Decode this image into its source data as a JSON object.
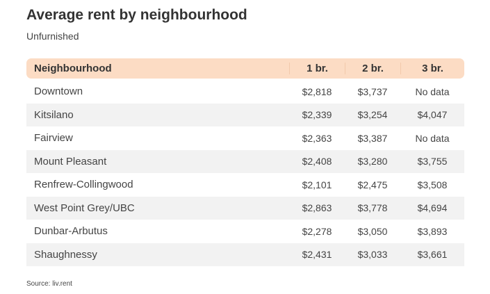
{
  "title": "Average rent by neighbourhood",
  "subtitle": "Unfurnished",
  "source": "Source: liv.rent",
  "colors": {
    "header_bg": "#fcdcc4",
    "stripe_bg": "#f2f2f2",
    "text": "#333333"
  },
  "chart_data": {
    "type": "table",
    "title": "Average rent by neighbourhood",
    "subtitle": "Unfurnished",
    "columns": [
      "Neighbourhood",
      "1 br.",
      "2 br.",
      "3 br."
    ],
    "rows": [
      [
        "Downtown",
        "$2,818",
        "$3,737",
        "No data"
      ],
      [
        "Kitsilano",
        "$2,339",
        "$3,254",
        "$4,047"
      ],
      [
        "Fairview",
        "$2,363",
        "$3,387",
        "No data"
      ],
      [
        "Mount Pleasant",
        "$2,408",
        "$3,280",
        "$3,755"
      ],
      [
        "Renfrew-Collingwood",
        "$2,101",
        "$2,475",
        "$3,508"
      ],
      [
        "West Point Grey/UBC",
        "$2,863",
        "$3,778",
        "$4,694"
      ],
      [
        "Dunbar-Arbutus",
        "$2,278",
        "$3,050",
        "$3,893"
      ],
      [
        "Shaughnessy",
        "$2,431",
        "$3,033",
        "$3,661"
      ]
    ]
  }
}
